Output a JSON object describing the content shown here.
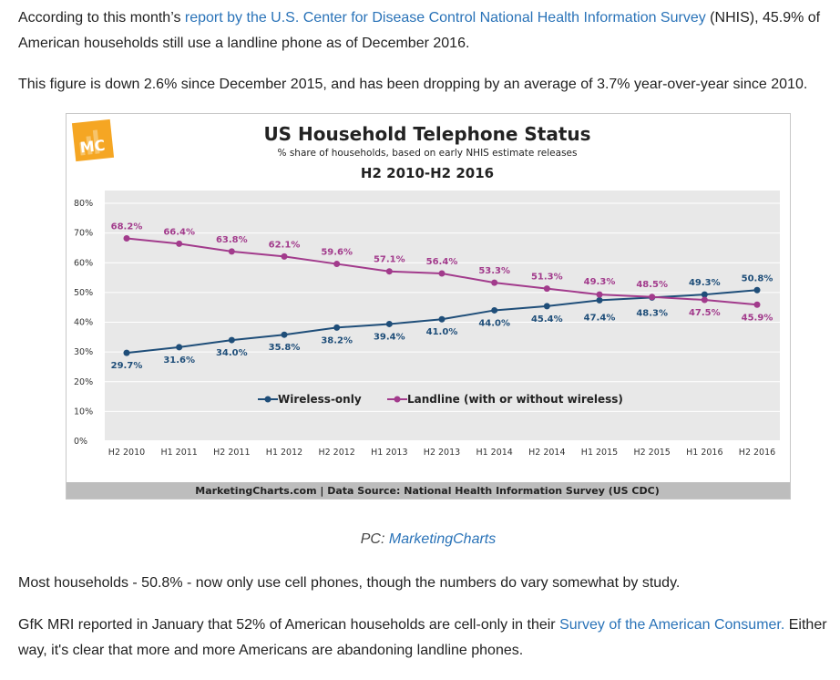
{
  "article": {
    "p1_before": "According to this month’s ",
    "p1_link": "report by the U.S. Center for Disease Control National Health Information Survey",
    "p1_after": " (NHIS), 45.9% of American households still use a landline phone as of December 2016.",
    "p2": "This figure is down 2.6% since December 2015, and has been dropping by an average of 3.7% year-over-year since 2010.",
    "caption_prefix": "PC: ",
    "caption_link": "MarketingCharts",
    "p3": "Most households - 50.8% - now only use cell phones, though the numbers do vary somewhat by study.",
    "p4_before": "GfK MRI reported in January that 52% of American households are cell-only in their ",
    "p4_link": "Survey of the American Consumer.",
    "p4_after": " Either way, it's clear that more and more Americans are abandoning landline phones."
  },
  "colors": {
    "link": "#2a73b8",
    "wireless": "#1f4e79",
    "landline": "#a23b8c",
    "plot_bg": "#e8e8e8",
    "logo": "#f5a623",
    "footer_bg": "#bdbdbd"
  },
  "chart_data": {
    "type": "line",
    "title": "US Household Telephone Status",
    "subtitle": "% share of households, based on early NHIS estimate releases",
    "period": "H2 2010-H2 2016",
    "logo_text": "MC",
    "footer": "MarketingCharts.com | Data Source: National Health Information Survey (US CDC)",
    "categories": [
      "H2 2010",
      "H1 2011",
      "H2 2011",
      "H1 2012",
      "H2 2012",
      "H1 2013",
      "H2 2013",
      "H1 2014",
      "H2 2014",
      "H1 2015",
      "H2 2015",
      "H1 2016",
      "H2 2016"
    ],
    "y_ticks": [
      "0%",
      "10%",
      "20%",
      "30%",
      "40%",
      "50%",
      "60%",
      "70%",
      "80%"
    ],
    "ylim": [
      0,
      80
    ],
    "grid": true,
    "legend_position": "inside-bottom-center",
    "series": [
      {
        "name": "Wireless-only",
        "color": "#1f4e79",
        "values": [
          29.7,
          31.6,
          34.0,
          35.8,
          38.2,
          39.4,
          41.0,
          44.0,
          45.4,
          47.4,
          48.3,
          49.3,
          50.8
        ],
        "labels": [
          "29.7%",
          "31.6%",
          "34.0%",
          "35.8%",
          "38.2%",
          "39.4%",
          "41.0%",
          "44.0%",
          "45.4%",
          "47.4%",
          "48.3%",
          "49.3%",
          "50.8%"
        ]
      },
      {
        "name": "Landline (with or without wireless)",
        "color": "#a23b8c",
        "values": [
          68.2,
          66.4,
          63.8,
          62.1,
          59.6,
          57.1,
          56.4,
          53.3,
          51.3,
          49.3,
          48.5,
          47.5,
          45.9
        ],
        "labels": [
          "68.2%",
          "66.4%",
          "63.8%",
          "62.1%",
          "59.6%",
          "57.1%",
          "56.4%",
          "53.3%",
          "51.3%",
          "49.3%",
          "48.5%",
          "47.5%",
          "45.9%"
        ]
      }
    ]
  }
}
